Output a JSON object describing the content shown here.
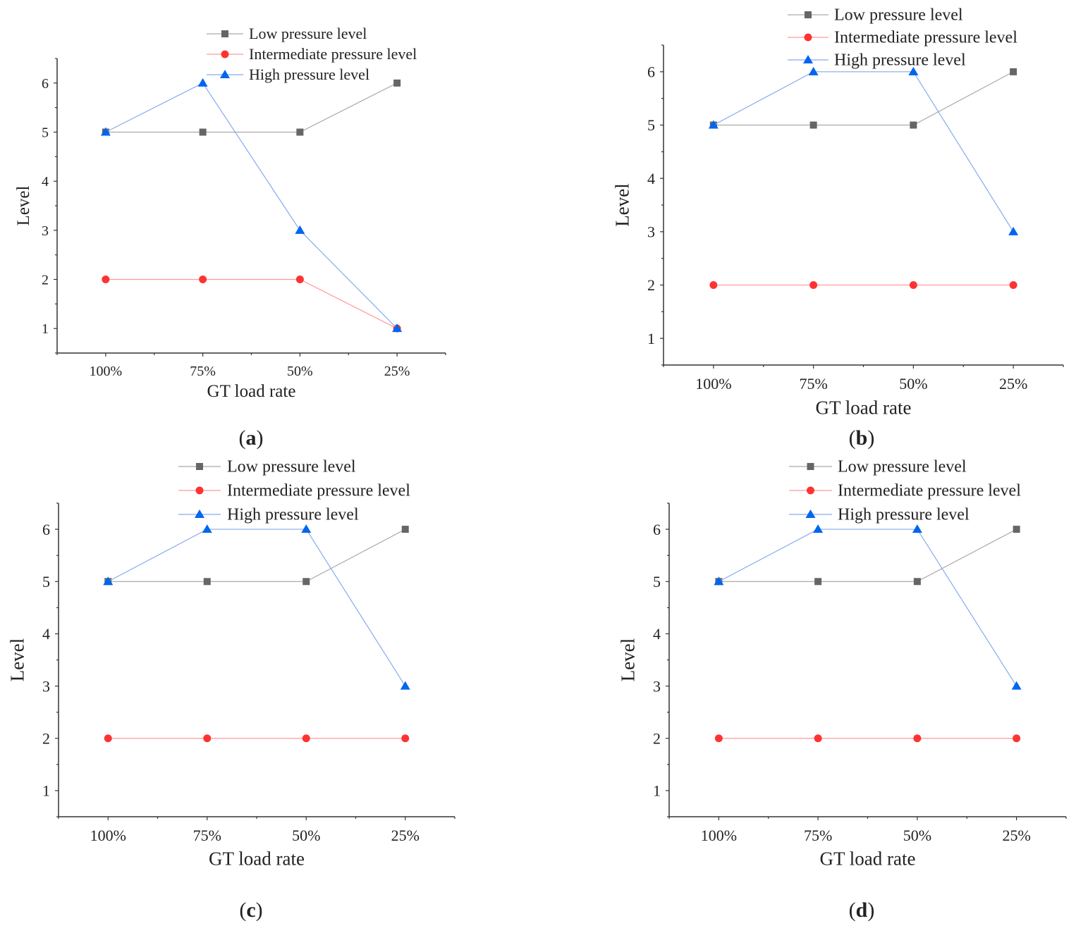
{
  "chart_data": [
    {
      "type": "line",
      "caption": "a",
      "xlabel": "GT load rate",
      "ylabel": "Level",
      "categories": [
        "100%",
        "75%",
        "50%",
        "25%"
      ],
      "ylim": [
        0.5,
        6.5
      ],
      "yticks": [
        1,
        2,
        3,
        4,
        5,
        6
      ],
      "legend_position": "top-right",
      "series": [
        {
          "name": "Low pressure level",
          "color": "#666666",
          "marker": "square",
          "values": [
            5,
            5,
            5,
            6
          ]
        },
        {
          "name": "Intermediate pressure level",
          "color": "#ff3333",
          "marker": "circle",
          "values": [
            2,
            2,
            2,
            1
          ]
        },
        {
          "name": "High pressure level",
          "color": "#0066ee",
          "marker": "triangle",
          "values": [
            5,
            6,
            3,
            1
          ]
        }
      ]
    },
    {
      "type": "line",
      "caption": "b",
      "xlabel": "GT load rate",
      "ylabel": "Level",
      "categories": [
        "100%",
        "75%",
        "50%",
        "25%"
      ],
      "ylim": [
        0.5,
        6.5
      ],
      "yticks": [
        1,
        2,
        3,
        4,
        5,
        6
      ],
      "legend_position": "top-right",
      "series": [
        {
          "name": "Low pressure level",
          "color": "#666666",
          "marker": "square",
          "values": [
            5,
            5,
            5,
            6
          ]
        },
        {
          "name": "Intermediate pressure level",
          "color": "#ff3333",
          "marker": "circle",
          "values": [
            2,
            2,
            2,
            2
          ]
        },
        {
          "name": "High pressure level",
          "color": "#0066ee",
          "marker": "triangle",
          "values": [
            5,
            6,
            6,
            3
          ]
        }
      ]
    },
    {
      "type": "line",
      "caption": "c",
      "xlabel": "GT load rate",
      "ylabel": "Level",
      "categories": [
        "100%",
        "75%",
        "50%",
        "25%"
      ],
      "ylim": [
        0.5,
        6.5
      ],
      "yticks": [
        1,
        2,
        3,
        4,
        5,
        6
      ],
      "legend_position": "top-right",
      "series": [
        {
          "name": "Low pressure level",
          "color": "#666666",
          "marker": "square",
          "values": [
            5,
            5,
            5,
            6
          ]
        },
        {
          "name": "Intermediate pressure level",
          "color": "#ff3333",
          "marker": "circle",
          "values": [
            2,
            2,
            2,
            2
          ]
        },
        {
          "name": "High pressure level",
          "color": "#0066ee",
          "marker": "triangle",
          "values": [
            5,
            6,
            6,
            3
          ]
        }
      ]
    },
    {
      "type": "line",
      "caption": "d",
      "xlabel": "GT load rate",
      "ylabel": "Level",
      "categories": [
        "100%",
        "75%",
        "50%",
        "25%"
      ],
      "ylim": [
        0.5,
        6.5
      ],
      "yticks": [
        1,
        2,
        3,
        4,
        5,
        6
      ],
      "legend_position": "top-right",
      "series": [
        {
          "name": "Low pressure level",
          "color": "#666666",
          "marker": "square",
          "values": [
            5,
            5,
            5,
            6
          ]
        },
        {
          "name": "Intermediate pressure level",
          "color": "#ff3333",
          "marker": "circle",
          "values": [
            2,
            2,
            2,
            2
          ]
        },
        {
          "name": "High pressure level",
          "color": "#0066ee",
          "marker": "triangle",
          "values": [
            5,
            6,
            6,
            3
          ]
        }
      ]
    }
  ]
}
